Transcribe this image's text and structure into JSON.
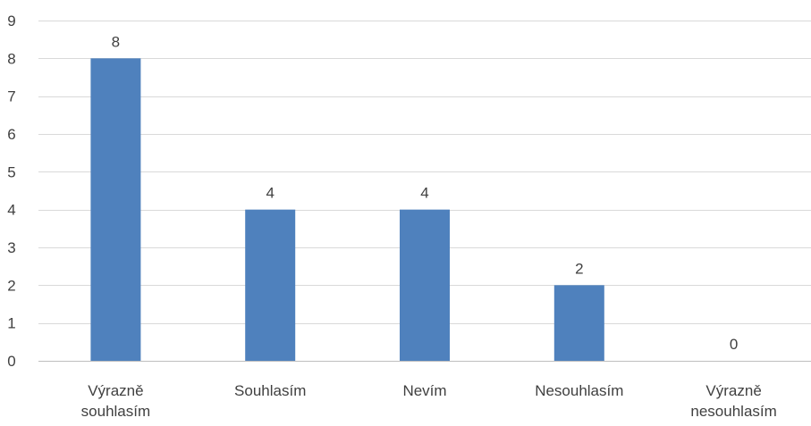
{
  "chart_data": {
    "type": "bar",
    "title": "",
    "xlabel": "",
    "ylabel": "",
    "categories": [
      [
        "Výrazně",
        "souhlasím"
      ],
      [
        "Souhlasím"
      ],
      [
        "Nevím"
      ],
      [
        "Nesouhlasím"
      ],
      [
        "Výrazně",
        "nesouhlasím"
      ]
    ],
    "values": [
      8,
      4,
      4,
      2,
      0
    ],
    "ylim": [
      0,
      9
    ],
    "yticks": [
      0,
      1,
      2,
      3,
      4,
      5,
      6,
      7,
      8,
      9
    ],
    "grid": true,
    "legend": "none",
    "data_labels": true,
    "colors": {
      "bar": "#4f81bd",
      "grid": "#d9d9d9",
      "axis": "#bfbfbf",
      "text": "#404040"
    }
  }
}
